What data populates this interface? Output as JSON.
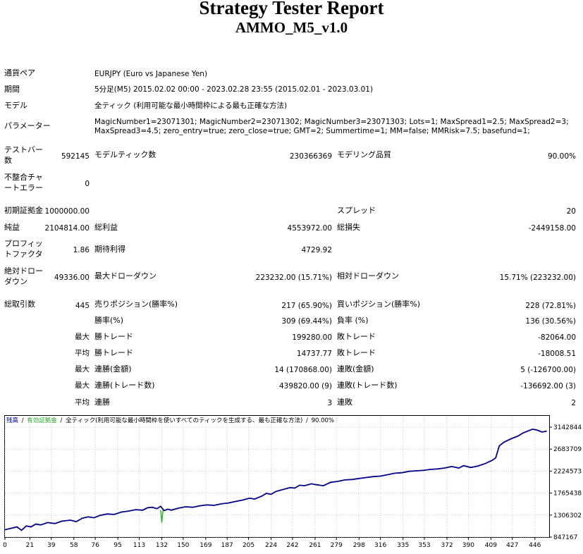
{
  "header": {
    "title": "Strategy Tester Report",
    "subtitle": "AMMO_M5_v1.0"
  },
  "info": {
    "symbol_label": "通貨ペア",
    "symbol_value": "EURJPY (Euro vs Japanese Yen)",
    "period_label": "期間",
    "period_value": "5分足(M5) 2015.02.02 00:00 - 2023.02.28 23:55 (2015.02.01 - 2023.03.01)",
    "model_label": "モデル",
    "model_value": "全ティック (利用可能な最小時間枠による最も正確な方法)",
    "params_label": "パラメーター",
    "params_line1": "MagicNumber1=23071301; MagicNumber2=23071302; MagicNumber3=23071303; Lots=1; MaxSpread1=2.5; MaxSpread2=3;",
    "params_line2": "MaxSpread3=4.5; zero_entry=true; zero_close=true; GMT=2; Summertime=1; MM=false; MMRisk=7.5; basefund=1;"
  },
  "stats": {
    "bars_label_1": "テストバー",
    "bars_label_2": "数",
    "bars_value": "592145",
    "ticks_label": "モデルティック数",
    "ticks_value": "230366369",
    "quality_label": "モデリング品質",
    "quality_value": "90.00%",
    "mismatch_label_1": "不整合チャ",
    "mismatch_label_2": "ートエラー",
    "mismatch_value": "0",
    "deposit_label": "初期証拠金",
    "deposit_value": "1000000.00",
    "spread_label": "スプレッド",
    "spread_value": "20",
    "net_label": "純益",
    "net_value": "2104814.00",
    "gross_profit_label": "総利益",
    "gross_profit_value": "4553972.00",
    "gross_loss_label": "総損失",
    "gross_loss_value": "-2449158.00",
    "pf_label_1": "プロフィッ",
    "pf_label_2": "トファクタ",
    "pf_value": "1.86",
    "payoff_label": "期待利得",
    "payoff_value": "4729.92",
    "abs_dd_label_1": "絶対ドロー",
    "abs_dd_label_2": "ダウン",
    "abs_dd_value": "49336.00",
    "max_dd_label": "最大ドローダウン",
    "max_dd_value": "223232.00 (15.71%)",
    "rel_dd_label": "相対ドローダウン",
    "rel_dd_value": "15.71% (223232.00)",
    "total_trades_label": "総取引数",
    "total_trades_value": "445",
    "short_label": "売りポジション(勝率%)",
    "short_value": "217 (65.90%)",
    "long_label": "買いポジション(勝率%)",
    "long_value": "228 (72.81%)",
    "win_pct_label": "勝率(%)",
    "win_pct_value": "309 (69.44%)",
    "loss_pct_label": "負率 (%)",
    "loss_pct_value": "136 (30.56%)",
    "max_word": "最大",
    "avg_word": "平均",
    "largest_win_label": "勝トレード",
    "largest_win_value": "199280.00",
    "largest_loss_label": "敗トレード",
    "largest_loss_value": "-82064.00",
    "avg_win_label": "勝トレード",
    "avg_win_value": "14737.77",
    "avg_loss_label": "敗トレード",
    "avg_loss_value": "-18008.51",
    "max_consec_win_money_label": "連勝(金額)",
    "max_consec_win_money_value": "14 (170868.00)",
    "max_consec_loss_money_label": "連敗(金額)",
    "max_consec_loss_money_value": "5 (-126700.00)",
    "max_consec_win_count_label": "連勝(トレード数)",
    "max_consec_win_count_value": "439820.00 (9)",
    "max_consec_loss_count_label": "連敗(トレード数)",
    "max_consec_loss_count_value": "-136692.00 (3)",
    "avg_consec_win_label": "連勝",
    "avg_consec_win_value": "3",
    "avg_consec_loss_label": "連敗",
    "avg_consec_loss_value": "2"
  },
  "chart_data": {
    "type": "line",
    "legend_balance": "残高",
    "legend_sep": "/",
    "legend_equity": "有効証拠金",
    "legend_sep2": "/",
    "legend_model": "全ティック(利用可能な最小時間枠を使いすべてのティックを生成する、最も正確な方法)",
    "legend_sep3": "/",
    "legend_quality": "90.00%",
    "colors": {
      "balance": "#00008b",
      "equity": "#22aa22",
      "grid": "#c8c8c8"
    },
    "x_ticks": [
      "0",
      "21",
      "39",
      "58",
      "76",
      "95",
      "113",
      "132",
      "150",
      "169",
      "187",
      "205",
      "224",
      "242",
      "261",
      "279",
      "298",
      "316",
      "335",
      "353",
      "372",
      "390",
      "409",
      "427",
      "446"
    ],
    "y_ticks": [
      "3142844",
      "2683709",
      "2224573",
      "1765438",
      "1306302",
      "847167"
    ],
    "ylim": [
      847167,
      3142844
    ],
    "xlim": [
      0,
      458
    ],
    "balance": [
      [
        0,
        1000000
      ],
      [
        5,
        1030000
      ],
      [
        10,
        1060000
      ],
      [
        14,
        990000
      ],
      [
        18,
        1080000
      ],
      [
        22,
        1060000
      ],
      [
        26,
        1120000
      ],
      [
        30,
        1100000
      ],
      [
        36,
        1150000
      ],
      [
        42,
        1130000
      ],
      [
        48,
        1180000
      ],
      [
        55,
        1200000
      ],
      [
        60,
        1170000
      ],
      [
        65,
        1240000
      ],
      [
        70,
        1270000
      ],
      [
        75,
        1250000
      ],
      [
        80,
        1300000
      ],
      [
        86,
        1330000
      ],
      [
        92,
        1320000
      ],
      [
        98,
        1370000
      ],
      [
        104,
        1390000
      ],
      [
        110,
        1420000
      ],
      [
        116,
        1410000
      ],
      [
        120,
        1460000
      ],
      [
        124,
        1470000
      ],
      [
        128,
        1440000
      ],
      [
        131,
        1490000
      ],
      [
        134,
        1400000
      ],
      [
        137,
        1430000
      ],
      [
        140,
        1410000
      ],
      [
        146,
        1450000
      ],
      [
        152,
        1480000
      ],
      [
        158,
        1470000
      ],
      [
        164,
        1500000
      ],
      [
        170,
        1520000
      ],
      [
        176,
        1510000
      ],
      [
        182,
        1540000
      ],
      [
        188,
        1560000
      ],
      [
        194,
        1590000
      ],
      [
        200,
        1620000
      ],
      [
        206,
        1660000
      ],
      [
        210,
        1640000
      ],
      [
        216,
        1700000
      ],
      [
        220,
        1760000
      ],
      [
        224,
        1740000
      ],
      [
        228,
        1800000
      ],
      [
        234,
        1840000
      ],
      [
        240,
        1880000
      ],
      [
        244,
        1870000
      ],
      [
        248,
        1930000
      ],
      [
        252,
        1920000
      ],
      [
        258,
        1960000
      ],
      [
        262,
        1940000
      ],
      [
        268,
        1920000
      ],
      [
        274,
        1990000
      ],
      [
        280,
        2010000
      ],
      [
        286,
        2040000
      ],
      [
        292,
        2050000
      ],
      [
        298,
        2070000
      ],
      [
        304,
        2090000
      ],
      [
        310,
        2110000
      ],
      [
        316,
        2120000
      ],
      [
        322,
        2150000
      ],
      [
        328,
        2180000
      ],
      [
        334,
        2190000
      ],
      [
        340,
        2220000
      ],
      [
        346,
        2230000
      ],
      [
        352,
        2240000
      ],
      [
        358,
        2260000
      ],
      [
        364,
        2270000
      ],
      [
        370,
        2290000
      ],
      [
        376,
        2320000
      ],
      [
        382,
        2290000
      ],
      [
        386,
        2340000
      ],
      [
        392,
        2300000
      ],
      [
        398,
        2330000
      ],
      [
        404,
        2380000
      ],
      [
        410,
        2450000
      ],
      [
        413,
        2500000
      ],
      [
        416,
        2750000
      ],
      [
        420,
        2830000
      ],
      [
        426,
        2900000
      ],
      [
        432,
        2960000
      ],
      [
        436,
        3020000
      ],
      [
        440,
        3060000
      ],
      [
        444,
        3100000
      ],
      [
        448,
        3080000
      ],
      [
        452,
        3040000
      ],
      [
        456,
        3060000
      ]
    ],
    "equity_dip": [
      [
        131,
        1410000
      ],
      [
        132,
        1150000
      ],
      [
        133,
        1420000
      ]
    ]
  }
}
